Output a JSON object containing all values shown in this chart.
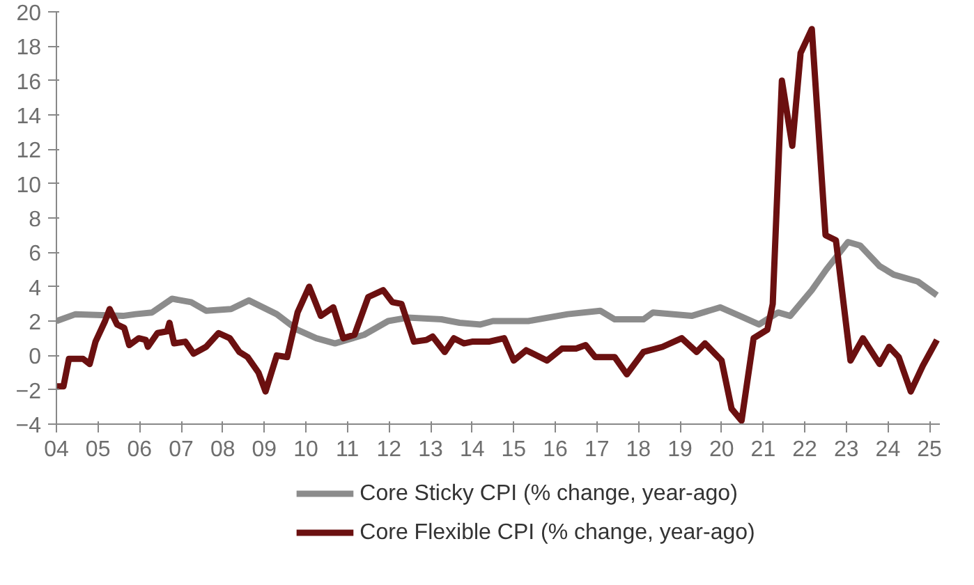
{
  "chart_data": {
    "type": "line",
    "xlim": [
      2004,
      2025.25
    ],
    "ylim": [
      -4,
      20
    ],
    "yticks": [
      -4,
      -2,
      0,
      2,
      4,
      6,
      8,
      10,
      12,
      14,
      16,
      18,
      20
    ],
    "xticks": [
      {
        "value": 2004,
        "label": "04"
      },
      {
        "value": 2005,
        "label": "05"
      },
      {
        "value": 2006,
        "label": "06"
      },
      {
        "value": 2007,
        "label": "07"
      },
      {
        "value": 2008,
        "label": "08"
      },
      {
        "value": 2009,
        "label": "09"
      },
      {
        "value": 2010,
        "label": "10"
      },
      {
        "value": 2011,
        "label": "11"
      },
      {
        "value": 2012,
        "label": "12"
      },
      {
        "value": 2013,
        "label": "13"
      },
      {
        "value": 2014,
        "label": "14"
      },
      {
        "value": 2015,
        "label": "15"
      },
      {
        "value": 2016,
        "label": "16"
      },
      {
        "value": 2017,
        "label": "17"
      },
      {
        "value": 2018,
        "label": "18"
      },
      {
        "value": 2019,
        "label": "19"
      },
      {
        "value": 2020,
        "label": "20"
      },
      {
        "value": 2021,
        "label": "21"
      },
      {
        "value": 2022,
        "label": "22"
      },
      {
        "value": 2023,
        "label": "23"
      },
      {
        "value": 2024,
        "label": "24"
      },
      {
        "value": 2025,
        "label": "25"
      }
    ],
    "grid": false,
    "legend": "bottom",
    "marker": "none",
    "line_style": "solid",
    "series": [
      {
        "name": "Core Sticky CPI (% change, year-ago)",
        "color": "#8c8c8c",
        "x": [
          2004.0,
          2004.46,
          2005.6,
          2005.9,
          2006.3,
          2006.78,
          2007.24,
          2007.6,
          2008.2,
          2008.63,
          2009.3,
          2009.79,
          2010.25,
          2010.7,
          2011.4,
          2011.98,
          2012.45,
          2013.26,
          2013.7,
          2014.2,
          2014.5,
          2015.35,
          2016.3,
          2017.08,
          2017.43,
          2018.12,
          2018.35,
          2019.28,
          2019.97,
          2020.44,
          2020.9,
          2021.36,
          2021.65,
          2022.17,
          2022.52,
          2023.04,
          2023.33,
          2023.8,
          2024.14,
          2024.72,
          2025.18
        ],
        "values": [
          2.0,
          2.4,
          2.3,
          2.4,
          2.5,
          3.3,
          3.1,
          2.6,
          2.7,
          3.2,
          2.4,
          1.5,
          1.0,
          0.7,
          1.2,
          2.0,
          2.2,
          2.1,
          1.9,
          1.8,
          2.0,
          2.0,
          2.4,
          2.6,
          2.1,
          2.1,
          2.5,
          2.3,
          2.8,
          2.3,
          1.8,
          2.5,
          2.3,
          3.8,
          5.0,
          6.6,
          6.4,
          5.2,
          4.7,
          4.3,
          3.5
        ]
      },
      {
        "name": "Core Flexible CPI (% change, year-ago)",
        "color": "#6b1010",
        "x": [
          2004.0,
          2004.17,
          2004.3,
          2004.64,
          2004.8,
          2004.94,
          2005.17,
          2005.28,
          2005.46,
          2005.63,
          2005.75,
          2005.98,
          2006.15,
          2006.2,
          2006.43,
          2006.66,
          2006.72,
          2006.83,
          2007.1,
          2007.3,
          2007.6,
          2007.9,
          2008.17,
          2008.4,
          2008.6,
          2008.86,
          2009.03,
          2009.3,
          2009.55,
          2009.8,
          2010.08,
          2010.36,
          2010.66,
          2010.9,
          2011.17,
          2011.5,
          2011.86,
          2012.08,
          2012.3,
          2012.6,
          2012.9,
          2013.05,
          2013.34,
          2013.56,
          2013.8,
          2014.0,
          2014.4,
          2014.77,
          2015.0,
          2015.3,
          2015.8,
          2016.16,
          2016.5,
          2016.73,
          2016.96,
          2017.43,
          2017.72,
          2018.12,
          2018.58,
          2019.04,
          2019.4,
          2019.6,
          2020.0,
          2020.24,
          2020.48,
          2020.77,
          2021.1,
          2021.23,
          2021.45,
          2021.7,
          2021.9,
          2022.17,
          2022.5,
          2022.75,
          2023.1,
          2023.4,
          2023.8,
          2024.03,
          2024.26,
          2024.55,
          2024.84,
          2025.18
        ],
        "values": [
          -1.8,
          -1.8,
          -0.2,
          -0.2,
          -0.5,
          0.8,
          2.0,
          2.7,
          1.8,
          1.6,
          0.6,
          1.0,
          0.9,
          0.5,
          1.3,
          1.4,
          1.9,
          0.7,
          0.8,
          0.1,
          0.5,
          1.3,
          1.0,
          0.2,
          -0.1,
          -1.0,
          -2.1,
          0.0,
          -0.1,
          2.5,
          4.0,
          2.3,
          2.8,
          1.0,
          1.2,
          3.4,
          3.8,
          3.1,
          3.0,
          0.8,
          0.9,
          1.1,
          0.2,
          1.0,
          0.7,
          0.8,
          0.8,
          1.0,
          -0.3,
          0.3,
          -0.3,
          0.4,
          0.4,
          0.6,
          -0.1,
          -0.1,
          -1.1,
          0.2,
          0.5,
          1.0,
          0.2,
          0.7,
          -0.3,
          -3.1,
          -3.8,
          1.0,
          1.5,
          3.0,
          16.0,
          12.2,
          17.6,
          19.0,
          7.0,
          6.7,
          -0.3,
          1.0,
          -0.5,
          0.5,
          -0.1,
          -2.1,
          -0.6,
          0.9
        ]
      }
    ]
  }
}
